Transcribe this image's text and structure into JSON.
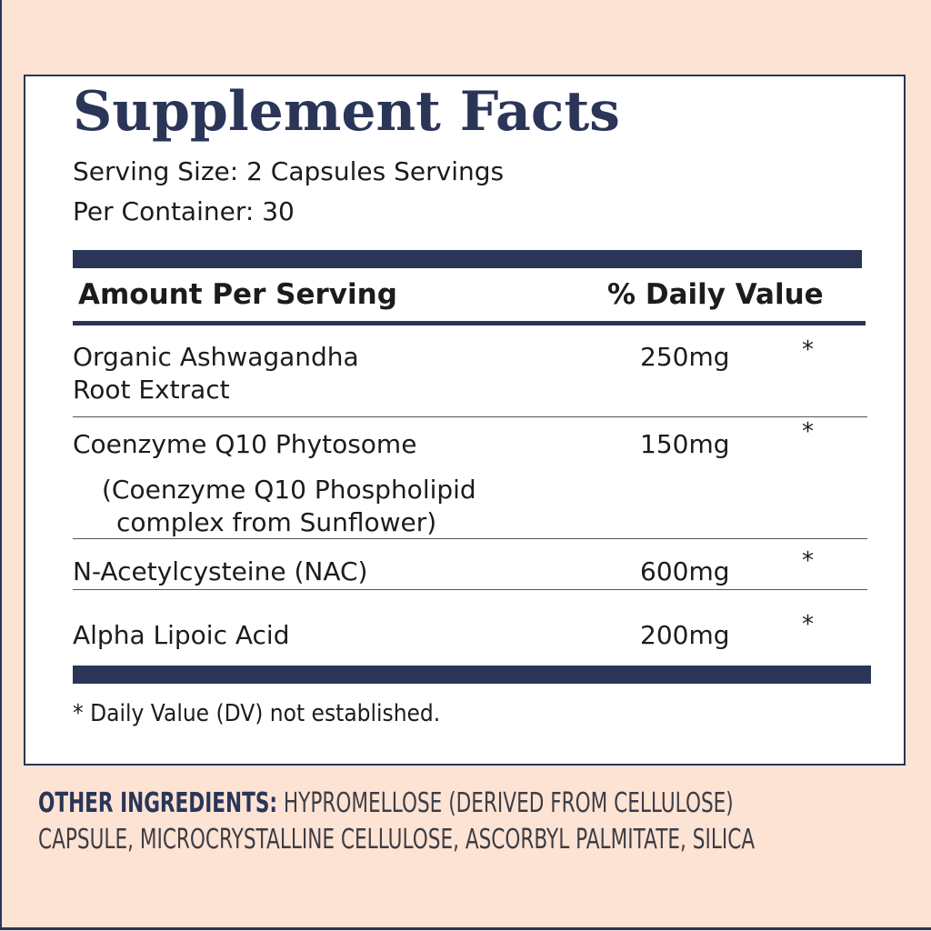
{
  "title": "Supplement Facts",
  "serving_line1": "Serving Size: 2 Capsules Servings",
  "serving_line2": "Per Container: 30",
  "header": {
    "amount": "Amount Per Serving",
    "dv": "% Daily Value"
  },
  "ingredients": [
    {
      "name_lines": [
        "Organic Ashwagandha",
        "Root Extract"
      ],
      "amount": "250mg",
      "dv": "*"
    },
    {
      "name_lines": [
        "Coenzyme Q10 Phytosome",
        "(Coenzyme Q10 Phospholipid",
        "complex from Sunflower)"
      ],
      "amount": "150mg",
      "dv": "*"
    },
    {
      "name_lines": [
        "N-Acetylcysteine (NAC)"
      ],
      "amount": "600mg",
      "dv": "*"
    },
    {
      "name_lines": [
        "Alpha Lipoic Acid"
      ],
      "amount": "200mg",
      "dv": "*"
    }
  ],
  "footnote": "* Daily Value (DV) not established.",
  "other": {
    "label": "OTHER INGREDIENTS:",
    "line1": "HYPROMELLOSE (DERIVED FROM CELLULOSE)",
    "line2": "CAPSULE, MICROCRYSTALLINE CELLULOSE, ASCORBYL PALMITATE, SILICA"
  },
  "colors": {
    "navy": "#2a3558",
    "background": "#fde3d4",
    "panel": "#ffffff"
  }
}
